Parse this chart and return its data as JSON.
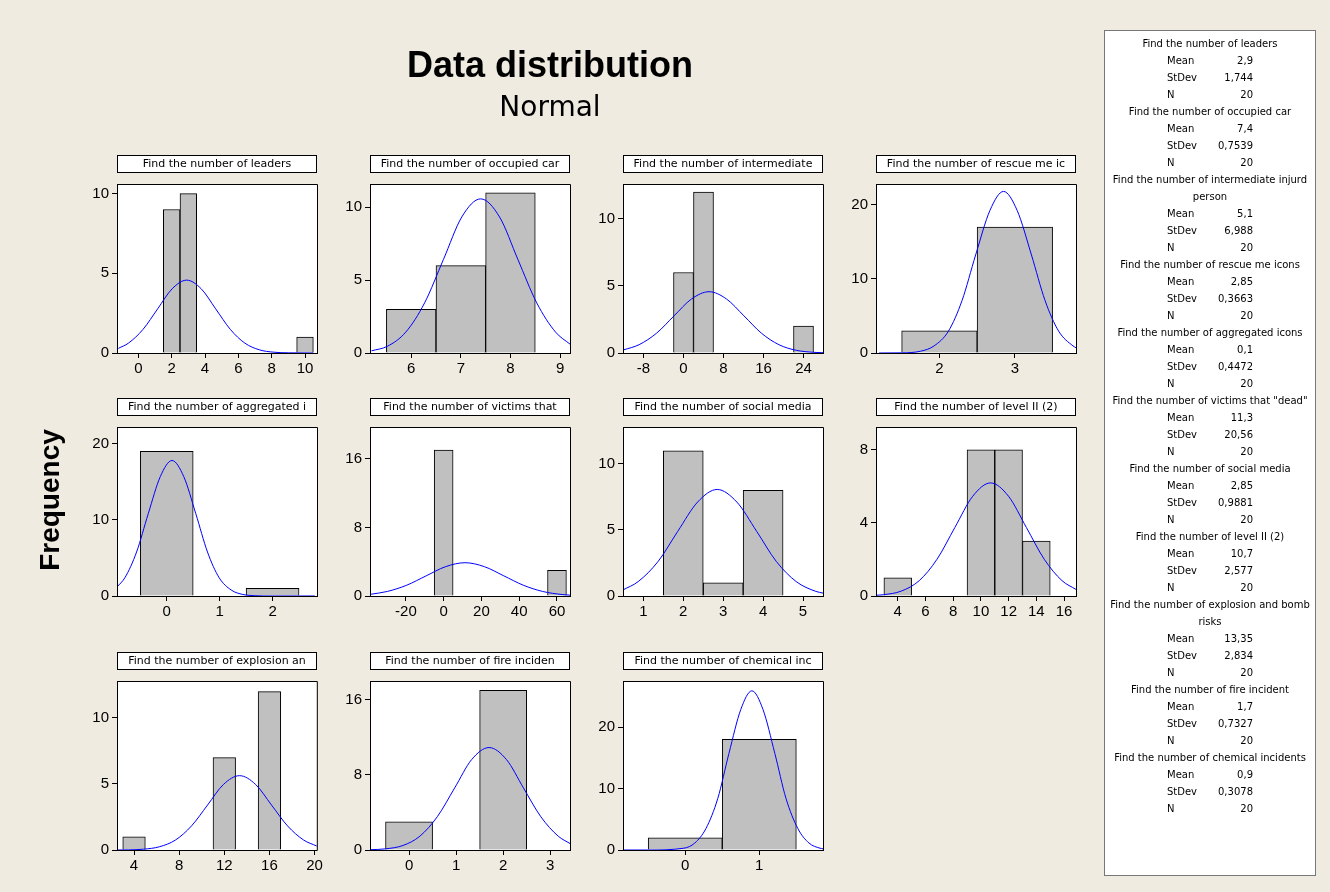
{
  "chart_data": [
    {
      "type": "other",
      "title": "Data distribution",
      "subtitle": "Normal",
      "ylabel": "Frequency",
      "annotations": [
        "Find the number of leaders",
        "Mean\t2,9",
        "StDev\t1,744",
        "N\t20",
        "Find the number of occupied car",
        "Mean\t7,4",
        "StDev\t0,7539",
        "N\t20",
        "Find the number of intermediate injurd person",
        "Mean\t5,1",
        "StDev\t6,988",
        "N\t20",
        "Find the number of rescue me icons",
        "Mean\t2,85",
        "StDev\t0,3663",
        "N\t20",
        "Find the number of aggregated icons",
        "Mean\t0,1",
        "StDev\t0,4472",
        "N\t20",
        "Find the number of victims that \"dead\"",
        "Mean\t11,3",
        "StDev\t20,56",
        "N\t20",
        "Find the number of social media",
        "Mean\t2,85",
        "StDev\t0,9881",
        "N\t20",
        "Find the number of level II (2)",
        "Mean\t10,7",
        "StDev\t2,577",
        "N\t20",
        "Find the number of explosion and bomb risks",
        "Mean\t13,35",
        "StDev\t2,834",
        "N\t20",
        "Find the number of fire incident",
        "Mean\t1,7",
        "StDev\t0,7327",
        "N\t20",
        "Find the number of chemical incidents",
        "Mean\t0,9",
        "StDev\t0,3078",
        "N\t20"
      ]
    },
    {
      "type": "histogram",
      "title": "Find the number of leaders",
      "bins": [
        1.5,
        2.5,
        3.5,
        4.5,
        5.5,
        6.5,
        7.5,
        8.5,
        9.5,
        10.5
      ],
      "values": [
        9,
        10,
        0,
        0,
        0,
        0,
        0,
        0,
        1
      ],
      "color": "#c0c0c0",
      "xlim": [
        -1.28,
        10.72
      ],
      "xticks": [
        0,
        2,
        4,
        6,
        8,
        10
      ],
      "ylim": [
        0,
        10.6
      ],
      "yticks": [
        0,
        5,
        10
      ],
      "series": [
        {
          "type": "line",
          "color": "#0000ff",
          "x": [
            -1.2,
            -0.59,
            0.28,
            1.16,
            2.03,
            2.9,
            3.77,
            4.64,
            5.52,
            6.39,
            7.26,
            8.13,
            9,
            10.5
          ],
          "values": [
            0.29,
            0.62,
            1.48,
            2.77,
            4.03,
            4.57,
            4.03,
            2.77,
            1.48,
            0.62,
            0.2,
            0.05,
            0.01,
            0
          ]
        }
      ]
    },
    {
      "type": "histogram",
      "title": "Find the number of occupied car",
      "bins": [
        5.5,
        6.5,
        7.5,
        8.5
      ],
      "values": [
        3,
        6,
        11
      ],
      "color": "#c0c0c0",
      "xlim": [
        5.17,
        9.2
      ],
      "xticks": [
        6,
        7,
        8,
        9
      ],
      "ylim": [
        0,
        11.6
      ],
      "yticks": [
        0,
        5,
        10
      ],
      "series": [
        {
          "type": "line",
          "color": "#0000ff",
          "x": [
            5.2,
            5.52,
            5.89,
            6.27,
            6.65,
            7.02,
            7.4,
            7.78,
            8.15,
            8.53,
            8.91,
            9.2
          ],
          "values": [
            0.15,
            0.46,
            1.43,
            3.44,
            6.42,
            9.34,
            10.58,
            9.34,
            6.42,
            3.44,
            1.43,
            0.61
          ]
        }
      ]
    },
    {
      "type": "histogram",
      "title": "Find the number of intermediate",
      "bins": [
        -2,
        2,
        6,
        10,
        14,
        18,
        22,
        26
      ],
      "values": [
        6,
        12,
        0,
        0,
        0,
        0,
        2
      ],
      "color": "#c0c0c0",
      "xlim": [
        -12.1,
        27.9
      ],
      "xticks": [
        -8,
        0,
        8,
        16,
        24
      ],
      "ylim": [
        0,
        12.6
      ],
      "yticks": [
        0,
        5,
        10
      ],
      "series": [
        {
          "type": "line",
          "color": "#0000ff",
          "x": [
            -12,
            -8.88,
            -5.38,
            -1.89,
            1.61,
            5.1,
            8.59,
            12.09,
            15.58,
            19.08,
            22.57,
            26.06,
            27.9
          ],
          "values": [
            0.23,
            0.62,
            1.48,
            2.77,
            4.03,
            4.57,
            4.03,
            2.77,
            1.48,
            0.62,
            0.2,
            0.05,
            0.02
          ]
        }
      ]
    },
    {
      "type": "histogram",
      "title": "Find the number of rescue me ic",
      "bins": [
        1.5,
        2.5,
        3.5
      ],
      "values": [
        3,
        17
      ],
      "color": "#c0c0c0",
      "xlim": [
        1.16,
        3.81
      ],
      "xticks": [
        2,
        3
      ],
      "ylim": [
        0,
        22.8
      ],
      "yticks": [
        0,
        10,
        20
      ],
      "series": [
        {
          "type": "line",
          "color": "#0000ff",
          "x": [
            1.2,
            1.5,
            1.75,
            1.93,
            2.12,
            2.3,
            2.48,
            2.67,
            2.85,
            3.03,
            3.22,
            3.4,
            3.58,
            3.77,
            3.81
          ],
          "values": [
            0,
            0.02,
            0.24,
            0.96,
            2.95,
            7.08,
            13.22,
            19.24,
            21.8,
            19.24,
            13.22,
            7.08,
            2.95,
            0.96,
            0.71
          ]
        }
      ]
    },
    {
      "type": "histogram",
      "title": "Find the number of aggregated i",
      "bins": [
        -0.5,
        0.5,
        1.5,
        2.5
      ],
      "values": [
        19,
        0,
        1
      ],
      "color": "#c0c0c0",
      "xlim": [
        -0.94,
        2.84
      ],
      "xticks": [
        0,
        1,
        2
      ],
      "ylim": [
        0,
        22.2
      ],
      "yticks": [
        0,
        10,
        20
      ],
      "series": [
        {
          "type": "line",
          "color": "#0000ff",
          "x": [
            -0.94,
            -0.79,
            -0.57,
            -0.35,
            -0.12,
            0.1,
            0.32,
            0.55,
            0.77,
            0.99,
            1.22,
            1.44,
            1.67,
            2,
            2.8
          ],
          "values": [
            1.18,
            2.41,
            5.78,
            10.8,
            15.71,
            17.8,
            15.71,
            10.8,
            5.78,
            2.41,
            0.78,
            0.2,
            0.04,
            0,
            0
          ]
        }
      ]
    },
    {
      "type": "histogram",
      "title": "Find the number of victims that",
      "bins": [
        -5,
        5,
        15,
        25,
        35,
        45,
        55,
        65
      ],
      "values": [
        17,
        0,
        0,
        0,
        0,
        0,
        3
      ],
      "color": "#c0c0c0",
      "xlim": [
        -39,
        66.9
      ],
      "xticks": [
        -20,
        0,
        20,
        40,
        60
      ],
      "ylim": [
        0,
        19.7
      ],
      "yticks": [
        0,
        8,
        16
      ],
      "series": [
        {
          "type": "line",
          "color": "#0000ff",
          "x": [
            -39,
            -29.82,
            -19.54,
            -9.26,
            1.02,
            11.3,
            21.58,
            31.86,
            42.14,
            52.42,
            62.7,
            66.9
          ],
          "values": [
            0.19,
            0.53,
            1.26,
            2.35,
            3.42,
            3.88,
            3.42,
            2.35,
            1.26,
            0.53,
            0.17,
            0.1
          ]
        }
      ]
    },
    {
      "type": "histogram",
      "title": "Find the number of social media",
      "bins": [
        1.5,
        2.5,
        3.5,
        4.5
      ],
      "values": [
        11,
        1,
        8
      ],
      "color": "#c0c0c0",
      "xlim": [
        0.49,
        5.5
      ],
      "xticks": [
        1,
        2,
        3,
        4,
        5
      ],
      "ylim": [
        0,
        12.8
      ],
      "yticks": [
        0,
        5,
        10
      ],
      "series": [
        {
          "type": "line",
          "color": "#0000ff",
          "x": [
            0.49,
            0.87,
            1.37,
            1.86,
            2.36,
            2.85,
            3.34,
            3.84,
            4.33,
            4.83,
            5.32,
            5.5
          ],
          "values": [
            0.46,
            1.09,
            2.62,
            4.89,
            7.12,
            8.07,
            7.12,
            4.89,
            2.62,
            1.09,
            0.35,
            0.22
          ]
        }
      ]
    },
    {
      "type": "histogram",
      "title": "Find the number of level II (2)",
      "bins": [
        3,
        5,
        7,
        9,
        11,
        13,
        15
      ],
      "values": [
        1,
        0,
        0,
        8,
        8,
        3
      ],
      "color": "#c0c0c0",
      "xlim": [
        2.43,
        16.86
      ],
      "xticks": [
        4,
        6,
        8,
        10,
        12,
        14,
        16
      ],
      "ylim": [
        0,
        9.25
      ],
      "yticks": [
        0,
        4,
        8
      ],
      "series": [
        {
          "type": "line",
          "color": "#0000ff",
          "x": [
            2.43,
            2.97,
            4.26,
            5.55,
            6.83,
            8.12,
            9.41,
            10.7,
            11.99,
            13.28,
            14.57,
            15.85,
            16.86
          ],
          "values": [
            0.04,
            0.07,
            0.27,
            0.84,
            2.01,
            3.75,
            5.46,
            6.19,
            5.46,
            3.75,
            2.01,
            0.84,
            0.36
          ]
        }
      ]
    },
    {
      "type": "histogram",
      "title": "Find the number of explosion an",
      "bins": [
        3,
        5,
        7,
        9,
        11,
        13,
        15,
        17
      ],
      "values": [
        1,
        0,
        0,
        0,
        7,
        0,
        12
      ],
      "color": "#c0c0c0",
      "xlim": [
        2.49,
        20.2
      ],
      "xticks": [
        4,
        8,
        12,
        16,
        20
      ],
      "ylim": [
        0,
        12.8
      ],
      "yticks": [
        0,
        5,
        10
      ],
      "series": [
        {
          "type": "line",
          "color": "#0000ff",
          "x": [
            2.5,
            3.5,
            4.85,
            6.27,
            7.68,
            9.1,
            10.52,
            11.93,
            13.35,
            14.77,
            16.18,
            17.6,
            19.02,
            20.2
          ],
          "values": [
            0,
            0.01,
            0.06,
            0.25,
            0.76,
            1.83,
            3.41,
            4.97,
            5.63,
            4.97,
            3.41,
            1.83,
            0.76,
            0.3
          ]
        }
      ]
    },
    {
      "type": "histogram",
      "title": "Find the number of fire inciden",
      "bins": [
        -0.5,
        0.5,
        1.5,
        2.5
      ],
      "values": [
        3,
        0,
        17
      ],
      "color": "#c0c0c0",
      "xlim": [
        -0.83,
        3.42
      ],
      "xticks": [
        0,
        1,
        2,
        3
      ],
      "ylim": [
        0,
        17.98
      ],
      "yticks": [
        0,
        8,
        16
      ],
      "series": [
        {
          "type": "line",
          "color": "#0000ff",
          "x": [
            -0.83,
            -0.5,
            -0.13,
            0.23,
            0.6,
            0.97,
            1.33,
            1.7,
            2.07,
            2.43,
            2.8,
            3.17,
            3.42
          ],
          "values": [
            0.03,
            0.12,
            0.48,
            1.47,
            3.54,
            6.61,
            9.62,
            10.9,
            9.62,
            6.61,
            3.54,
            1.47,
            0.69
          ]
        }
      ]
    },
    {
      "type": "histogram",
      "title": "Find the number of chemical inc",
      "bins": [
        -0.5,
        0.5,
        1.5
      ],
      "values": [
        2,
        18
      ],
      "color": "#c0c0c0",
      "xlim": [
        -0.84,
        1.86
      ],
      "xticks": [
        0,
        1
      ],
      "ylim": [
        0,
        27.5
      ],
      "yticks": [
        0,
        10,
        20
      ],
      "series": [
        {
          "type": "line",
          "color": "#0000ff",
          "x": [
            -0.84,
            -0.5,
            -0.02,
            0.13,
            0.28,
            0.44,
            0.59,
            0.75,
            0.9,
            1.05,
            1.21,
            1.36,
            1.52,
            1.67,
            1.82,
            1.86
          ],
          "values": [
            0,
            0,
            0.29,
            1.14,
            3.5,
            8.41,
            15.71,
            22.86,
            25.9,
            22.86,
            15.71,
            8.41,
            3.5,
            1.14,
            0.29,
            0.2
          ]
        }
      ]
    }
  ]
}
